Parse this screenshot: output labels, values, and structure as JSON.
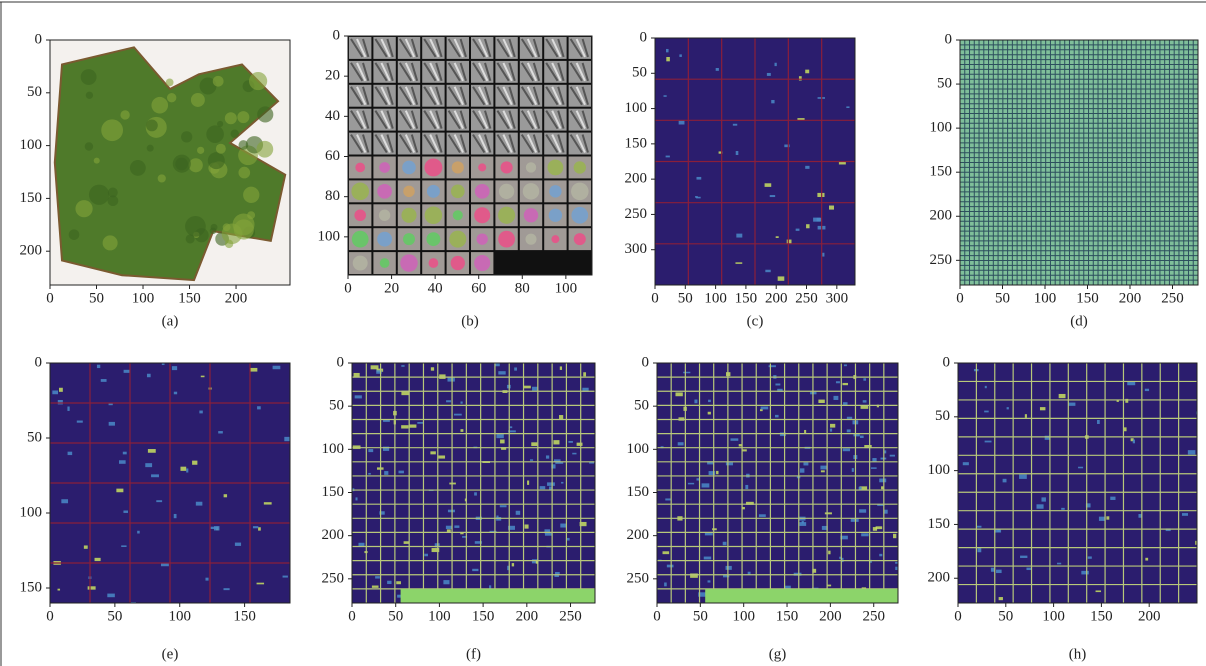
{
  "chart_data": [
    {
      "type": "image",
      "caption": "(a)",
      "xlim": [
        0,
        258
      ],
      "ylim": [
        0,
        232
      ],
      "xticks": [
        0,
        50,
        100,
        150,
        200
      ],
      "yticks": [
        0,
        50,
        100,
        150,
        200
      ]
    },
    {
      "type": "image",
      "caption": "(b)",
      "xlim": [
        0,
        112
      ],
      "ylim": [
        0,
        119
      ],
      "xticks": [
        0,
        20,
        40,
        60,
        80,
        100
      ],
      "yticks": [
        0,
        20,
        40,
        60,
        80,
        100
      ]
    },
    {
      "type": "image",
      "caption": "(c)",
      "xlim": [
        0,
        330
      ],
      "ylim": [
        0,
        350
      ],
      "xticks": [
        0,
        50,
        100,
        150,
        200,
        250,
        300
      ],
      "yticks": [
        0,
        50,
        100,
        150,
        200,
        250,
        300
      ]
    },
    {
      "type": "image",
      "caption": "(d)",
      "xlim": [
        0,
        280
      ],
      "ylim": [
        0,
        278
      ],
      "xticks": [
        0,
        50,
        100,
        150,
        200,
        250
      ],
      "yticks": [
        0,
        50,
        100,
        150,
        200,
        250
      ]
    },
    {
      "type": "image",
      "caption": "(e)",
      "xlim": [
        0,
        185
      ],
      "ylim": [
        0,
        160
      ],
      "xticks": [
        0,
        50,
        100,
        150
      ],
      "yticks": [
        0,
        50,
        100,
        150
      ]
    },
    {
      "type": "image",
      "caption": "(f)",
      "xlim": [
        0,
        278
      ],
      "ylim": [
        0,
        278
      ],
      "xticks": [
        0,
        50,
        100,
        150,
        200,
        250
      ],
      "yticks": [
        0,
        50,
        100,
        150,
        200,
        250
      ]
    },
    {
      "type": "image",
      "caption": "(g)",
      "xlim": [
        0,
        278
      ],
      "ylim": [
        0,
        278
      ],
      "xticks": [
        0,
        50,
        100,
        150,
        200,
        250
      ],
      "yticks": [
        0,
        50,
        100,
        150,
        200,
        250
      ]
    },
    {
      "type": "image",
      "caption": "(h)",
      "xlim": [
        0,
        250
      ],
      "ylim": [
        0,
        223
      ],
      "xticks": [
        0,
        50,
        100,
        150,
        200
      ],
      "yticks": [
        0,
        50,
        100,
        150,
        200
      ]
    }
  ]
}
